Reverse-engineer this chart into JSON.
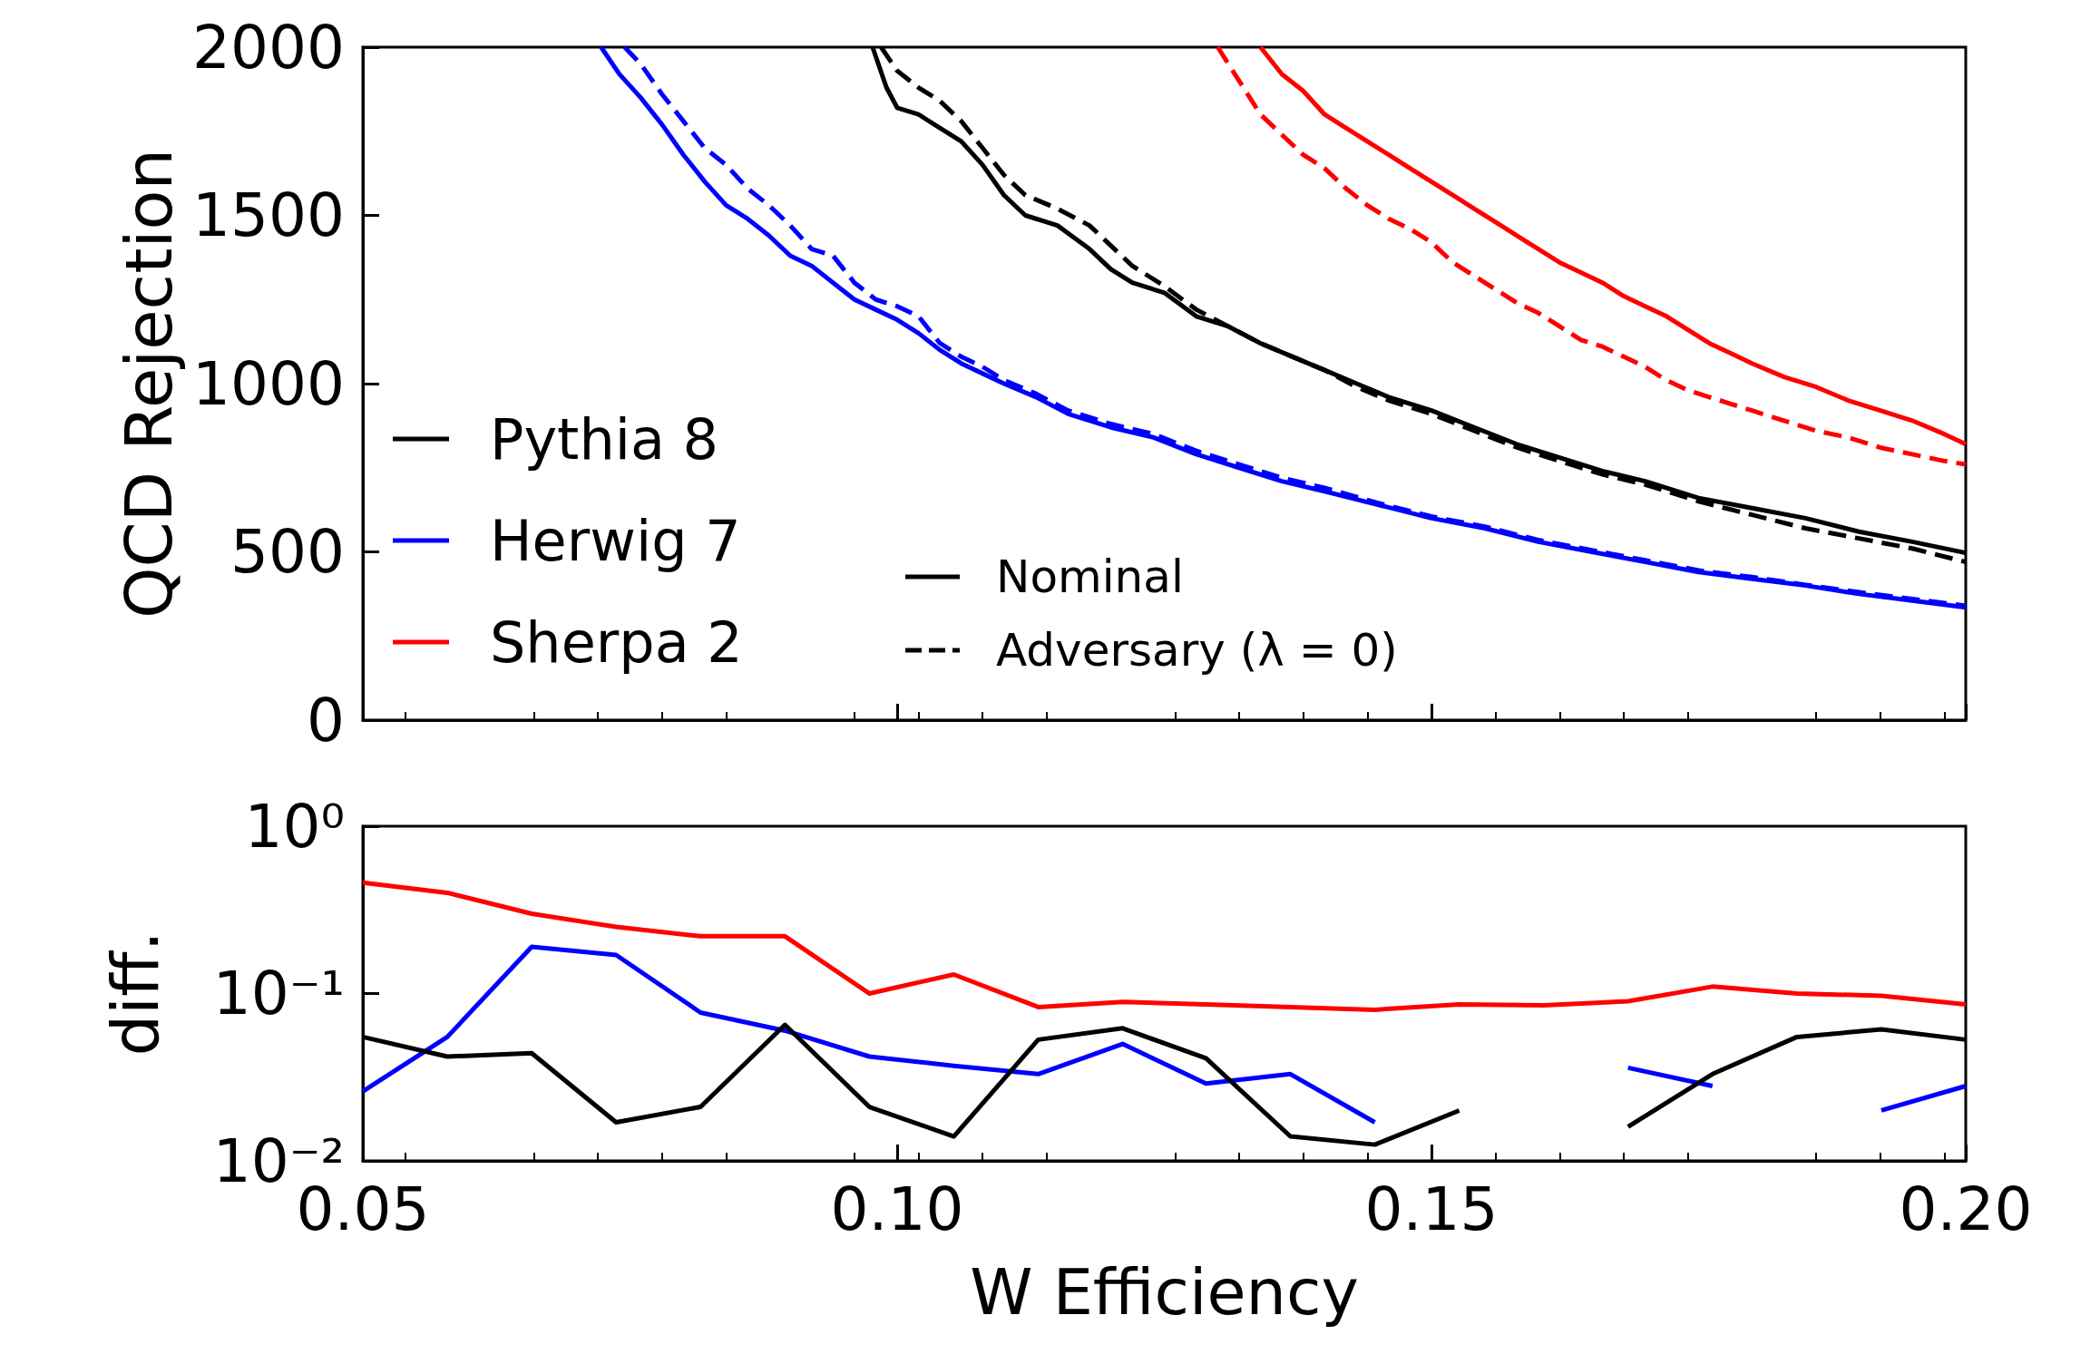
{
  "chart_data": [
    {
      "type": "line",
      "ylabel": "QCD Rejection",
      "xlim": [
        0.05,
        0.2
      ],
      "xticks": [
        {
          "value": 0.05,
          "label": null
        },
        {
          "value": 0.1,
          "label": null
        },
        {
          "value": 0.15,
          "label": null
        },
        {
          "value": 0.2,
          "label": null
        }
      ],
      "ylim": [
        0,
        2000
      ],
      "yticks": [
        0,
        500,
        1000,
        1500,
        2000
      ],
      "tick_labels": "y",
      "legend": "left",
      "grid": false,
      "marker": "none",
      "annotations": [
        "Nominal",
        "Adversary (λ = 0)"
      ],
      "series": [
        {
          "name": "Pythia 8",
          "color": "#000000",
          "line_style": "solid",
          "x": [
            0.0977,
            0.099,
            0.1,
            0.102,
            0.104,
            0.106,
            0.108,
            0.11,
            0.112,
            0.115,
            0.118,
            0.12,
            0.122,
            0.125,
            0.128,
            0.131,
            0.134,
            0.137,
            0.14,
            0.143,
            0.146,
            0.15,
            0.154,
            0.158,
            0.162,
            0.166,
            0.17,
            0.175,
            0.18,
            0.185,
            0.19,
            0.195,
            0.2
          ],
          "values": [
            2000,
            1880,
            1820,
            1800,
            1760,
            1720,
            1650,
            1560,
            1500,
            1470,
            1400,
            1340,
            1300,
            1270,
            1200,
            1170,
            1120,
            1080,
            1040,
            1000,
            960,
            920,
            870,
            820,
            780,
            740,
            710,
            660,
            630,
            600,
            560,
            530,
            497
          ]
        },
        {
          "color": "#000000",
          "line_style": "dashed",
          "x": [
            0.0985,
            0.1,
            0.102,
            0.104,
            0.106,
            0.108,
            0.11,
            0.112,
            0.115,
            0.118,
            0.12,
            0.122,
            0.125,
            0.128,
            0.131,
            0.134,
            0.137,
            0.14,
            0.143,
            0.146,
            0.15,
            0.154,
            0.158,
            0.162,
            0.166,
            0.17,
            0.175,
            0.18,
            0.185,
            0.19,
            0.195,
            0.2
          ],
          "values": [
            2000,
            1930,
            1880,
            1840,
            1780,
            1700,
            1620,
            1560,
            1520,
            1470,
            1410,
            1350,
            1290,
            1220,
            1170,
            1120,
            1080,
            1040,
            990,
            950,
            910,
            860,
            810,
            770,
            730,
            700,
            650,
            610,
            570,
            540,
            510,
            470
          ]
        },
        {
          "name": "Herwig 7",
          "color": "#0000ff",
          "line_style": "solid",
          "x": [
            0.0723,
            0.074,
            0.076,
            0.078,
            0.08,
            0.082,
            0.084,
            0.086,
            0.088,
            0.09,
            0.092,
            0.094,
            0.096,
            0.098,
            0.1,
            0.102,
            0.104,
            0.106,
            0.108,
            0.11,
            0.113,
            0.116,
            0.12,
            0.124,
            0.128,
            0.132,
            0.136,
            0.14,
            0.145,
            0.15,
            0.155,
            0.16,
            0.165,
            0.17,
            0.175,
            0.18,
            0.185,
            0.19,
            0.195,
            0.2
          ],
          "values": [
            2000,
            1920,
            1850,
            1770,
            1680,
            1600,
            1530,
            1490,
            1440,
            1380,
            1350,
            1300,
            1250,
            1220,
            1190,
            1150,
            1100,
            1060,
            1030,
            1000,
            960,
            910,
            870,
            840,
            790,
            750,
            710,
            680,
            640,
            600,
            570,
            530,
            500,
            470,
            440,
            420,
            400,
            375,
            355,
            335
          ]
        },
        {
          "color": "#0000ff",
          "line_style": "dashed",
          "x": [
            0.0745,
            0.076,
            0.078,
            0.08,
            0.082,
            0.084,
            0.086,
            0.088,
            0.09,
            0.092,
            0.094,
            0.096,
            0.098,
            0.1,
            0.102,
            0.104,
            0.106,
            0.108,
            0.11,
            0.113,
            0.116,
            0.12,
            0.124,
            0.128,
            0.132,
            0.136,
            0.14,
            0.145,
            0.15,
            0.155,
            0.16,
            0.165,
            0.17,
            0.175,
            0.18,
            0.185,
            0.19,
            0.195,
            0.2
          ],
          "values": [
            2000,
            1950,
            1860,
            1780,
            1700,
            1650,
            1580,
            1530,
            1470,
            1400,
            1380,
            1300,
            1250,
            1230,
            1200,
            1120,
            1080,
            1050,
            1010,
            970,
            920,
            880,
            850,
            800,
            760,
            720,
            690,
            645,
            605,
            575,
            535,
            505,
            475,
            445,
            425,
            402,
            380,
            360,
            340
          ]
        },
        {
          "name": "Sherpa 2",
          "color": "#ff0000",
          "line_style": "solid",
          "x": [
            0.134,
            0.136,
            0.138,
            0.14,
            0.142,
            0.144,
            0.146,
            0.148,
            0.15,
            0.152,
            0.154,
            0.156,
            0.158,
            0.16,
            0.162,
            0.164,
            0.166,
            0.168,
            0.17,
            0.172,
            0.174,
            0.176,
            0.178,
            0.18,
            0.183,
            0.186,
            0.189,
            0.192,
            0.195,
            0.198,
            0.2
          ],
          "values": [
            2000,
            1920,
            1870,
            1800,
            1760,
            1720,
            1680,
            1640,
            1600,
            1560,
            1520,
            1480,
            1440,
            1400,
            1360,
            1330,
            1300,
            1260,
            1230,
            1200,
            1160,
            1120,
            1090,
            1060,
            1020,
            990,
            950,
            920,
            890,
            850,
            820
          ]
        },
        {
          "color": "#ff0000",
          "line_style": "dashed",
          "x": [
            0.13,
            0.132,
            0.134,
            0.136,
            0.138,
            0.14,
            0.142,
            0.144,
            0.146,
            0.148,
            0.15,
            0.152,
            0.154,
            0.156,
            0.158,
            0.16,
            0.162,
            0.164,
            0.166,
            0.168,
            0.17,
            0.172,
            0.174,
            0.176,
            0.178,
            0.18,
            0.183,
            0.186,
            0.189,
            0.192,
            0.195,
            0.198,
            0.2
          ],
          "values": [
            2000,
            1900,
            1800,
            1740,
            1680,
            1640,
            1580,
            1530,
            1490,
            1460,
            1420,
            1360,
            1320,
            1280,
            1240,
            1210,
            1170,
            1130,
            1110,
            1080,
            1050,
            1010,
            980,
            960,
            940,
            920,
            890,
            860,
            840,
            810,
            790,
            770,
            760
          ]
        }
      ]
    },
    {
      "type": "line",
      "xlabel": "W Efficiency",
      "ylabel": "diff.",
      "log": "y",
      "xlim": [
        0.05,
        0.2
      ],
      "xticks": [
        {
          "value": 0.05,
          "label": "0.05"
        },
        {
          "value": 0.1,
          "label": "0.10"
        },
        {
          "value": 0.15,
          "label": "0.15"
        },
        {
          "value": 0.2,
          "label": "0.20"
        }
      ],
      "ylim": [
        0.01,
        1
      ],
      "yticks": [
        {
          "value": 0.01,
          "label": "10⁻²"
        },
        {
          "value": 0.1,
          "label": "10⁻¹"
        },
        {
          "value": 1,
          "label": "10⁰"
        }
      ],
      "grid": false,
      "marker": "none",
      "x": [
        0.05,
        0.0579,
        0.0658,
        0.0737,
        0.0816,
        0.0895,
        0.0974,
        0.1053,
        0.1132,
        0.1211,
        0.1289,
        0.1368,
        0.1447,
        0.1526,
        0.1605,
        0.1684,
        0.1763,
        0.1842,
        0.1921,
        0.2
      ],
      "series": [
        {
          "color": "#ff0000",
          "values": [
            0.46,
            0.4,
            0.3,
            0.25,
            0.22,
            0.22,
            0.1,
            0.13,
            0.083,
            0.089,
            0.086,
            0.083,
            0.08,
            0.086,
            0.085,
            0.09,
            0.11,
            0.1,
            0.097,
            0.086
          ]
        },
        {
          "color": "#0000ff",
          "values": [
            0.026,
            0.055,
            0.19,
            0.17,
            0.077,
            0.06,
            0.042,
            0.037,
            0.033,
            0.05,
            0.029,
            0.033,
            0.017,
            null,
            null,
            0.036,
            0.028,
            null,
            0.02,
            0.028
          ]
        },
        {
          "color": "#000000",
          "values": [
            0.055,
            0.042,
            0.044,
            0.017,
            0.021,
            0.065,
            0.021,
            0.014,
            0.053,
            0.062,
            0.041,
            0.014,
            0.0125,
            0.02,
            null,
            0.016,
            0.033,
            0.055,
            0.061,
            0.053
          ]
        }
      ]
    }
  ]
}
